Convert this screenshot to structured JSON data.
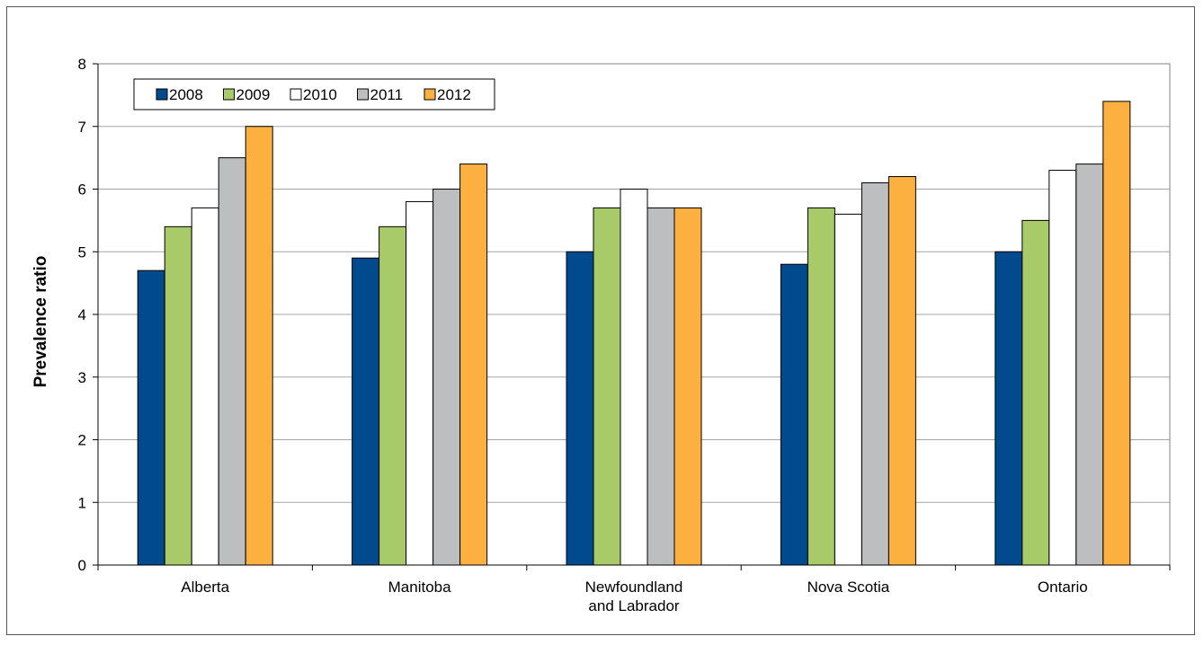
{
  "chart_data": {
    "type": "bar",
    "title": "",
    "xlabel": "",
    "ylabel": "Prevalence ratio",
    "ylim": [
      0,
      8
    ],
    "yticks": [
      0,
      1,
      2,
      3,
      4,
      5,
      6,
      7,
      8
    ],
    "grid": true,
    "legend_position": "top-left",
    "categories": [
      [
        "Alberta"
      ],
      [
        "Manitoba"
      ],
      [
        "Newfoundland",
        "and Labrador"
      ],
      [
        "Nova Scotia"
      ],
      [
        "Ontario"
      ]
    ],
    "series": [
      {
        "name": "2008",
        "color": "#004a8d",
        "values": [
          4.7,
          4.9,
          5.0,
          4.8,
          5.0
        ]
      },
      {
        "name": "2009",
        "color": "#a9ca69",
        "values": [
          5.4,
          5.4,
          5.7,
          5.7,
          5.5
        ]
      },
      {
        "name": "2010",
        "color": "#ffffff",
        "values": [
          5.7,
          5.8,
          6.0,
          5.6,
          6.3
        ]
      },
      {
        "name": "2011",
        "color": "#bcbec0",
        "values": [
          6.5,
          6.0,
          5.7,
          6.1,
          6.4
        ]
      },
      {
        "name": "2012",
        "color": "#fbb040",
        "values": [
          7.0,
          6.4,
          5.7,
          6.2,
          7.4
        ]
      }
    ]
  }
}
